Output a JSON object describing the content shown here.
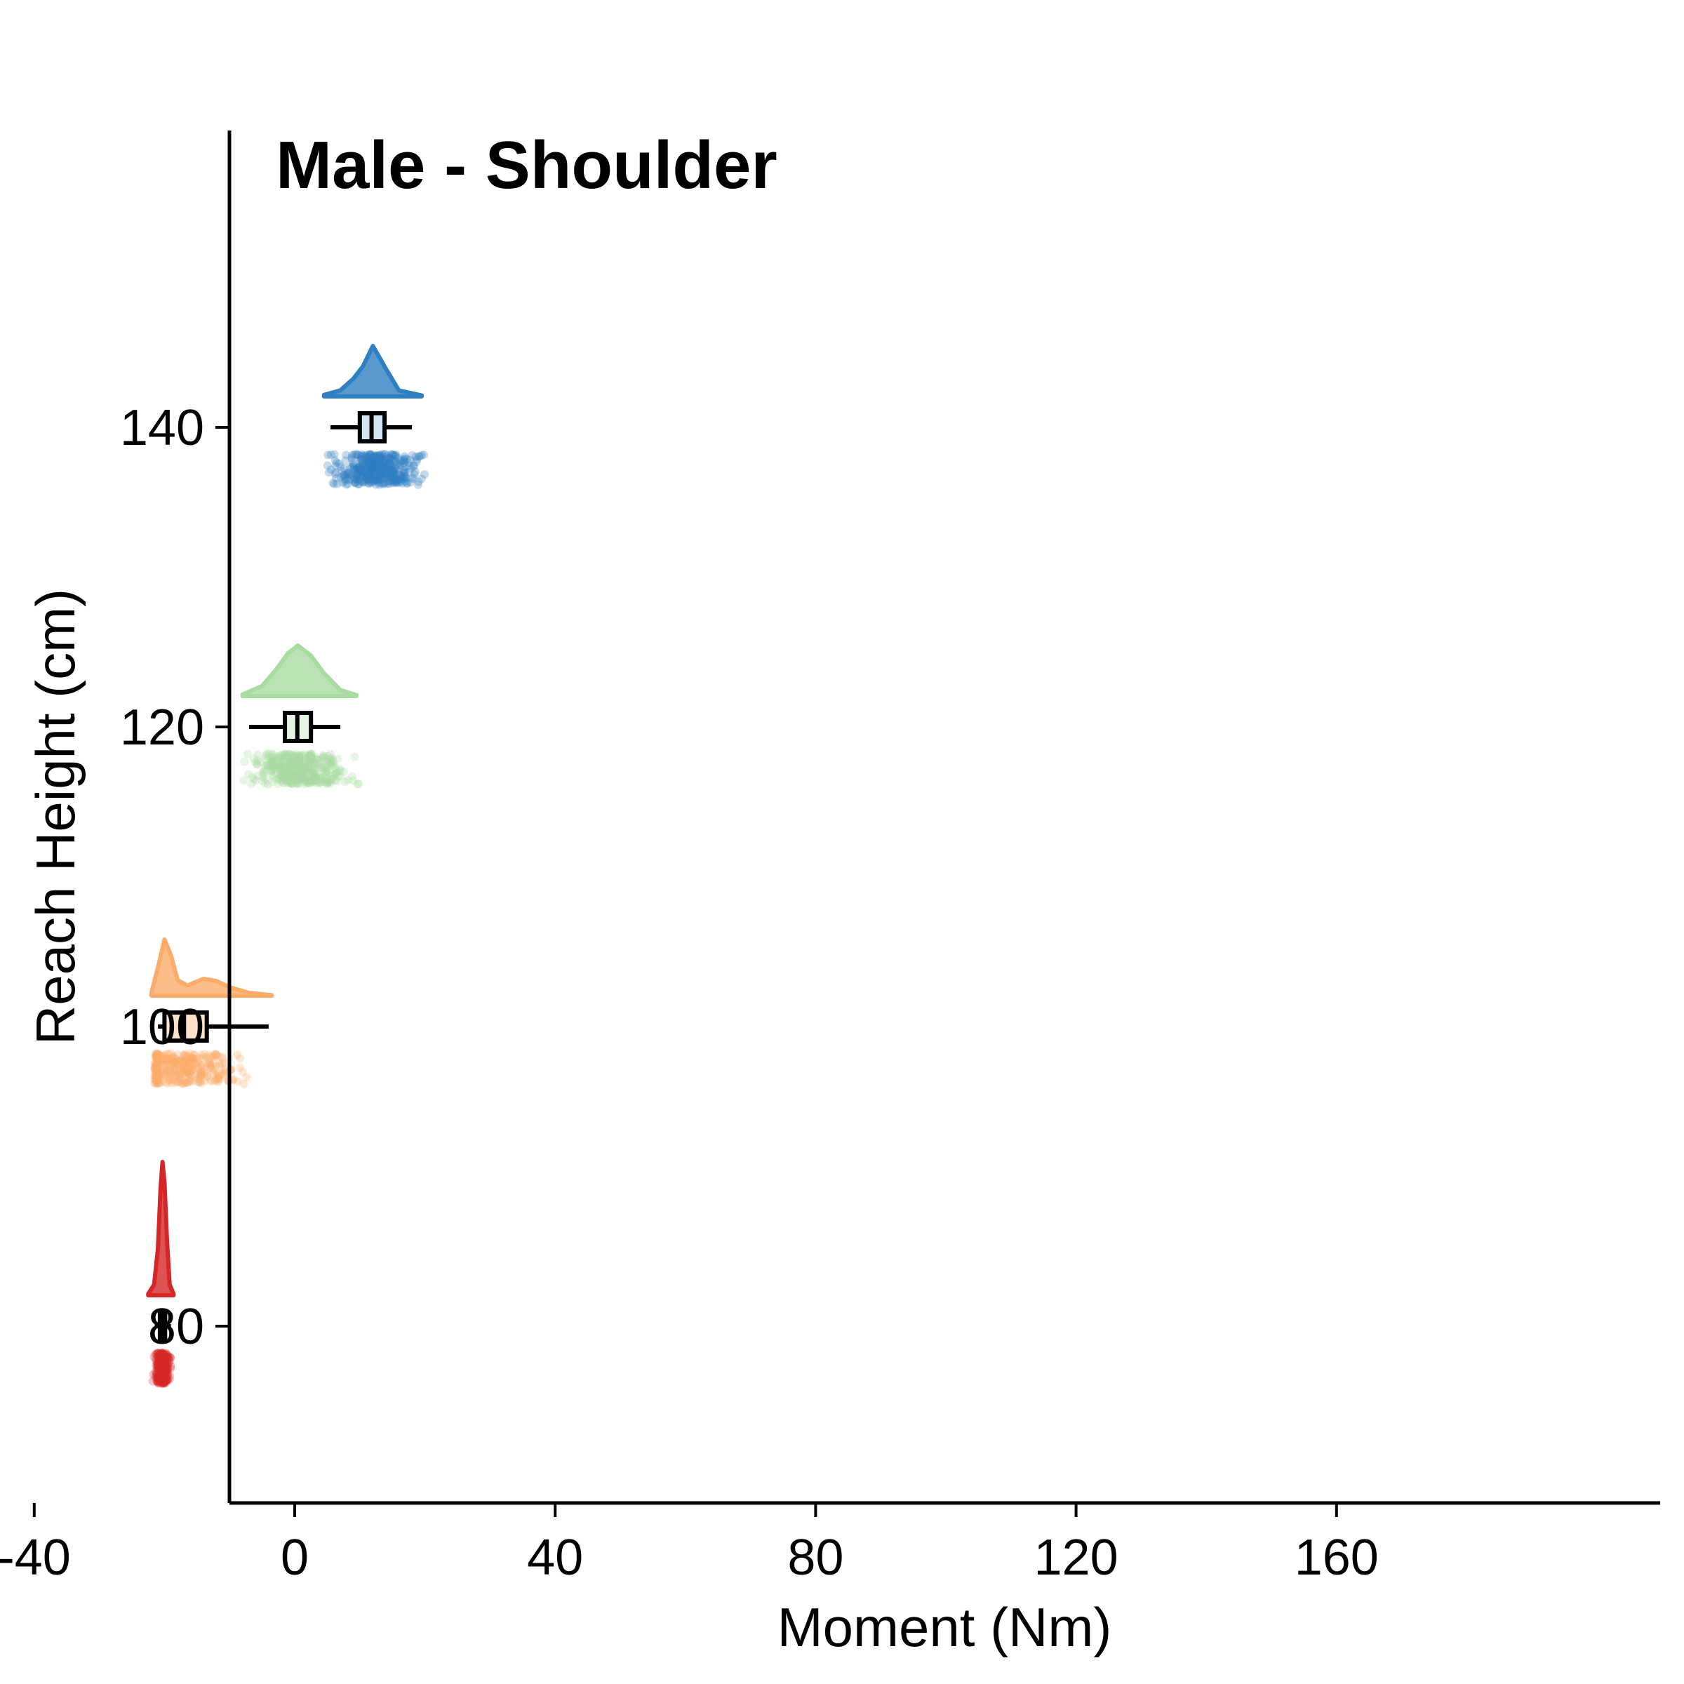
{
  "chart_data": {
    "type": "raincloud",
    "title": "Male - Shoulder",
    "xlabel": "Moment (Nm)",
    "ylabel": "Reach Height (cm)",
    "xlim": [
      -50,
      170
    ],
    "ylim": [
      68,
      162
    ],
    "x_ticks": [
      -40,
      0,
      40,
      80,
      120,
      160
    ],
    "y_ticks": [
      80,
      100,
      120,
      140
    ],
    "grid": false,
    "legend": "none",
    "groups": [
      {
        "y": 140,
        "color": "#2f7fc1",
        "box_fill": "#d3e4f3",
        "whisker_min": 5.5,
        "q1": 10,
        "median": 11.8,
        "q3": 13.8,
        "whisker_max": 18,
        "density_x": [
          4.5,
          7,
          9,
          10.5,
          12,
          14,
          16,
          19.5
        ],
        "density_y": [
          0.03,
          0.12,
          0.35,
          0.6,
          1.0,
          0.55,
          0.12,
          0.02
        ],
        "points_min": 5,
        "points_max": 20,
        "points_center": 12.5,
        "points_spread": 3.0,
        "points_n": 420
      },
      {
        "y": 120,
        "color": "#a8dca0",
        "box_fill": "#e6f5e3",
        "whisker_min": -7,
        "q1": -1.5,
        "median": 0.4,
        "q3": 2.5,
        "whisker_max": 7,
        "density_x": [
          -8,
          -5,
          -3,
          -1,
          0.5,
          2.5,
          4.5,
          7,
          9.5
        ],
        "density_y": [
          0.03,
          0.2,
          0.5,
          0.85,
          1.0,
          0.8,
          0.45,
          0.12,
          0.02
        ],
        "points_min": -8,
        "points_max": 10,
        "points_center": 0.5,
        "points_spread": 3.4,
        "points_n": 420
      },
      {
        "y": 100,
        "color": "#fbac6a",
        "box_fill": "#fde2c8",
        "whisker_min": -21,
        "q1": -20,
        "median": -17,
        "q3": -13.5,
        "whisker_max": -4,
        "density_x": [
          -22,
          -21,
          -20,
          -19,
          -18,
          -16.5,
          -14,
          -12,
          -10,
          -7,
          -3.5
        ],
        "density_y": [
          0.05,
          0.5,
          1.0,
          0.72,
          0.28,
          0.18,
          0.3,
          0.26,
          0.15,
          0.05,
          0.01
        ],
        "points_min": -21.5,
        "points_max": -3.5,
        "points_center": -18,
        "points_spread": 4.5,
        "points_n": 360
      },
      {
        "y": 80,
        "color": "#d62728",
        "box_fill": "#f4c0c0",
        "whisker_min": -21.5,
        "q1": -20.7,
        "median": -20.3,
        "q3": -19.9,
        "whisker_max": -19,
        "density_x": [
          -22.5,
          -21.6,
          -21,
          -20.6,
          -20.3,
          -20,
          -19.6,
          -19.2,
          -18.6
        ],
        "density_y": [
          0.01,
          0.08,
          0.35,
          0.8,
          1.0,
          0.85,
          0.4,
          0.08,
          0.01
        ],
        "points_min": -21.8,
        "points_max": -18.7,
        "points_center": -20.3,
        "points_spread": 0.5,
        "points_n": 300
      }
    ]
  }
}
